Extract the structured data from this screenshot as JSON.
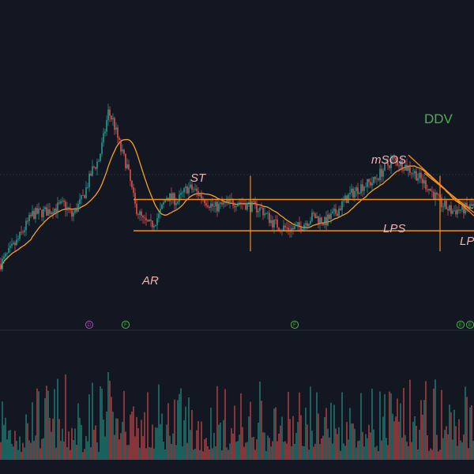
{
  "colors": {
    "background": "#131722",
    "up": "#26a69a",
    "down": "#ef5350",
    "up_volume": "#1f7f76",
    "down_volume": "#b54445",
    "moving_average": "#f6a02c",
    "drawing": "#f68c1f",
    "label": "#f1b2b2",
    "ticker": "#4caf50",
    "separator": "#2a2e39",
    "event_green": "#4caf50",
    "event_purple": "#ab47bc"
  },
  "chart_data": {
    "type": "candlestick",
    "ticker": "DDV",
    "annotations": [
      {
        "text": "ST",
        "bar": 121
      },
      {
        "text": "AR",
        "bar": 93
      },
      {
        "text": "mSOS",
        "bar": 245
      },
      {
        "text": "LPS",
        "bar": 250
      },
      {
        "text": "LP",
        "bar": 296
      }
    ],
    "events": [
      {
        "letter": "D",
        "bar": 56,
        "color": "purple"
      },
      {
        "letter": "F",
        "bar": 79,
        "color": "green"
      },
      {
        "letter": "F",
        "bar": 186,
        "color": "green"
      },
      {
        "letter": "E",
        "bar": 291,
        "color": "green"
      },
      {
        "letter": "E",
        "bar": 297,
        "color": "green"
      }
    ],
    "trading_range": {
      "resistance": 74,
      "support": 55,
      "start_bar": 84
    },
    "vertical_markers": [
      158,
      278
    ],
    "moving_average": {
      "period": 20
    },
    "candles": []
  }
}
